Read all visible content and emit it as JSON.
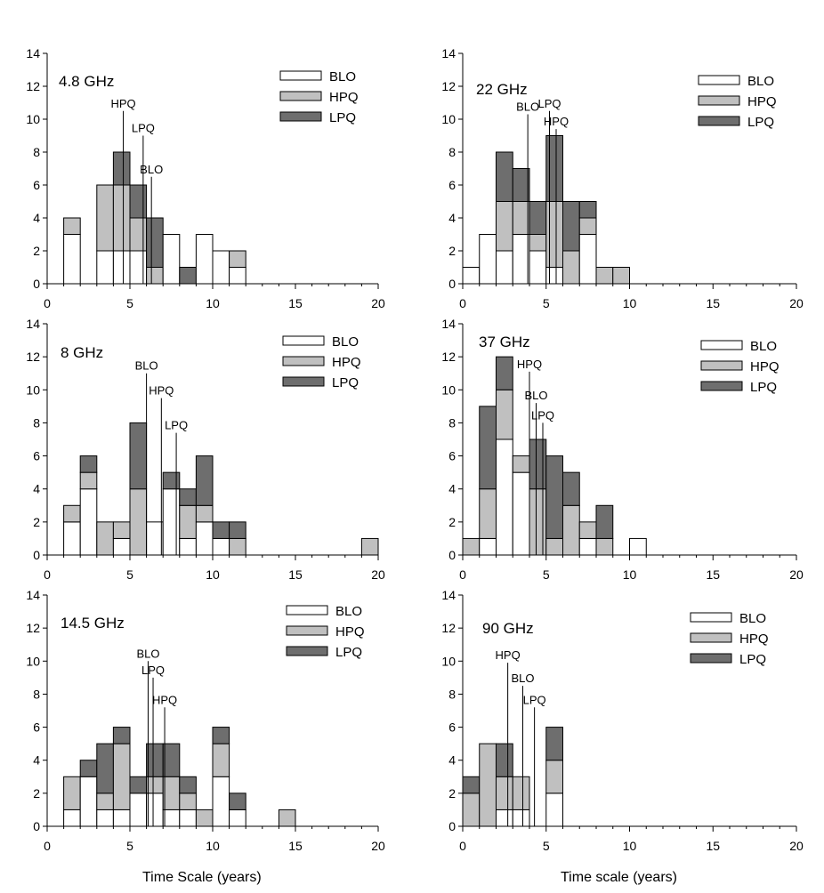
{
  "figure": {
    "xlabel_left": "Time Scale (years)",
    "xlabel_right": "Time scale (years)"
  },
  "legend": {
    "entries": [
      {
        "name": "BLO",
        "color": "#ffffff"
      },
      {
        "name": "HPQ",
        "color": "#c0c0c0"
      },
      {
        "name": "LPQ",
        "color": "#6e6e6e"
      }
    ],
    "placement": "top-right"
  },
  "chart_data": [
    {
      "type": "bar",
      "stacked": true,
      "title": "4.8 GHz",
      "xlim": [
        0,
        20
      ],
      "ylim": [
        0,
        14
      ],
      "xticks": [
        0,
        5,
        10,
        15,
        20
      ],
      "yticks": [
        0,
        2,
        4,
        6,
        8,
        10,
        12,
        14
      ],
      "bin_width": 1,
      "bin_starts": [
        1,
        3,
        4,
        5,
        6,
        7,
        8,
        9,
        10,
        11
      ],
      "series": [
        {
          "name": "BLO",
          "values": [
            3,
            2,
            2,
            2,
            0,
            3,
            0,
            3,
            2,
            1
          ]
        },
        {
          "name": "HPQ",
          "values": [
            1,
            4,
            4,
            2,
            1,
            0,
            0,
            0,
            0,
            1
          ]
        },
        {
          "name": "LPQ",
          "values": [
            0,
            0,
            2,
            2,
            3,
            0,
            1,
            0,
            0,
            0
          ]
        }
      ],
      "annotations": [
        {
          "label": "HPQ",
          "x": 4.6,
          "y": 10.5
        },
        {
          "label": "LPQ",
          "x": 5.8,
          "y": 9.0
        },
        {
          "label": "BLO",
          "x": 6.3,
          "y": 6.5
        }
      ]
    },
    {
      "type": "bar",
      "stacked": true,
      "title": "22 GHz",
      "xlim": [
        0,
        20
      ],
      "ylim": [
        0,
        14
      ],
      "xticks": [
        0,
        5,
        10,
        15,
        20
      ],
      "yticks": [
        0,
        2,
        4,
        6,
        8,
        10,
        12,
        14
      ],
      "bin_width": 1,
      "bin_starts": [
        0,
        1,
        2,
        3,
        4,
        5,
        6,
        7,
        8,
        9
      ],
      "series": [
        {
          "name": "BLO",
          "values": [
            1,
            3,
            2,
            3,
            2,
            1,
            0,
            3,
            0,
            0
          ]
        },
        {
          "name": "HPQ",
          "values": [
            0,
            0,
            3,
            2,
            1,
            4,
            2,
            1,
            1,
            1
          ]
        },
        {
          "name": "LPQ",
          "values": [
            0,
            0,
            3,
            2,
            2,
            4,
            3,
            1,
            0,
            0
          ]
        }
      ],
      "annotations": [
        {
          "label": "BLO",
          "x": 3.9,
          "y": 10.3
        },
        {
          "label": "LPQ",
          "x": 5.2,
          "y": 10.5
        },
        {
          "label": "HPQ",
          "x": 5.6,
          "y": 9.4
        }
      ]
    },
    {
      "type": "bar",
      "stacked": true,
      "title": "8 GHz",
      "xlim": [
        0,
        20
      ],
      "ylim": [
        0,
        14
      ],
      "xticks": [
        0,
        5,
        10,
        15,
        20
      ],
      "yticks": [
        0,
        2,
        4,
        6,
        8,
        10,
        12,
        14
      ],
      "bin_width": 1,
      "bin_starts": [
        1,
        2,
        3,
        4,
        5,
        6,
        7,
        8,
        9,
        10,
        11,
        19
      ],
      "series": [
        {
          "name": "BLO",
          "values": [
            2,
            4,
            0,
            1,
            0,
            2,
            4,
            1,
            2,
            1,
            0,
            0
          ]
        },
        {
          "name": "HPQ",
          "values": [
            1,
            1,
            2,
            1,
            4,
            0,
            0,
            2,
            1,
            0,
            1,
            1
          ]
        },
        {
          "name": "LPQ",
          "values": [
            0,
            1,
            0,
            0,
            4,
            0,
            1,
            1,
            3,
            1,
            1,
            0
          ]
        }
      ],
      "annotations": [
        {
          "label": "BLO",
          "x": 6.0,
          "y": 11.0
        },
        {
          "label": "HPQ",
          "x": 6.9,
          "y": 9.5
        },
        {
          "label": "LPQ",
          "x": 7.8,
          "y": 7.4
        }
      ]
    },
    {
      "type": "bar",
      "stacked": true,
      "title": "37 GHz",
      "xlim": [
        0,
        20
      ],
      "ylim": [
        0,
        14
      ],
      "xticks": [
        0,
        5,
        10,
        15,
        20
      ],
      "yticks": [
        0,
        2,
        4,
        6,
        8,
        10,
        12,
        14
      ],
      "bin_width": 1,
      "bin_starts": [
        0,
        1,
        2,
        3,
        4,
        5,
        6,
        7,
        8,
        10
      ],
      "series": [
        {
          "name": "BLO",
          "values": [
            0,
            1,
            7,
            5,
            0,
            0,
            0,
            1,
            0,
            1
          ]
        },
        {
          "name": "HPQ",
          "values": [
            1,
            3,
            3,
            1,
            4,
            1,
            3,
            1,
            1,
            0
          ]
        },
        {
          "name": "LPQ",
          "values": [
            0,
            5,
            2,
            0,
            3,
            5,
            2,
            0,
            2,
            0
          ]
        }
      ],
      "annotations": [
        {
          "label": "HPQ",
          "x": 4.0,
          "y": 11.1
        },
        {
          "label": "BLO",
          "x": 4.4,
          "y": 9.2
        },
        {
          "label": "LPQ",
          "x": 4.8,
          "y": 8.0
        }
      ]
    },
    {
      "type": "bar",
      "stacked": true,
      "title": "14.5 GHz",
      "xlim": [
        0,
        20
      ],
      "ylim": [
        0,
        14
      ],
      "xticks": [
        0,
        5,
        10,
        15,
        20
      ],
      "yticks": [
        0,
        2,
        4,
        6,
        8,
        10,
        12,
        14
      ],
      "bin_width": 1,
      "bin_starts": [
        1,
        2,
        3,
        4,
        5,
        6,
        7,
        8,
        9,
        10,
        11,
        14
      ],
      "series": [
        {
          "name": "BLO",
          "values": [
            1,
            3,
            1,
            1,
            2,
            2,
            1,
            1,
            0,
            3,
            1,
            0
          ]
        },
        {
          "name": "HPQ",
          "values": [
            2,
            0,
            1,
            4,
            0,
            1,
            2,
            1,
            1,
            2,
            0,
            1
          ]
        },
        {
          "name": "LPQ",
          "values": [
            0,
            1,
            3,
            1,
            1,
            2,
            2,
            1,
            0,
            1,
            1,
            0
          ]
        }
      ],
      "annotations": [
        {
          "label": "BLO",
          "x": 6.1,
          "y": 10.0
        },
        {
          "label": "LPQ",
          "x": 6.4,
          "y": 9.0
        },
        {
          "label": "HPQ",
          "x": 7.1,
          "y": 7.2
        }
      ]
    },
    {
      "type": "bar",
      "stacked": true,
      "title": "90 GHz",
      "xlim": [
        0,
        20
      ],
      "ylim": [
        0,
        14
      ],
      "xticks": [
        0,
        5,
        10,
        15,
        20
      ],
      "yticks": [
        0,
        2,
        4,
        6,
        8,
        10,
        12,
        14
      ],
      "bin_width": 1,
      "bin_starts": [
        0,
        1,
        2,
        3,
        5
      ],
      "series": [
        {
          "name": "BLO",
          "values": [
            0,
            0,
            1,
            1,
            2
          ]
        },
        {
          "name": "HPQ",
          "values": [
            2,
            5,
            2,
            2,
            2
          ]
        },
        {
          "name": "LPQ",
          "values": [
            1,
            0,
            2,
            0,
            2
          ]
        }
      ],
      "annotations": [
        {
          "label": "HPQ",
          "x": 2.7,
          "y": 9.9
        },
        {
          "label": "BLO",
          "x": 3.6,
          "y": 8.5
        },
        {
          "label": "LPQ",
          "x": 4.3,
          "y": 7.2
        }
      ]
    }
  ]
}
